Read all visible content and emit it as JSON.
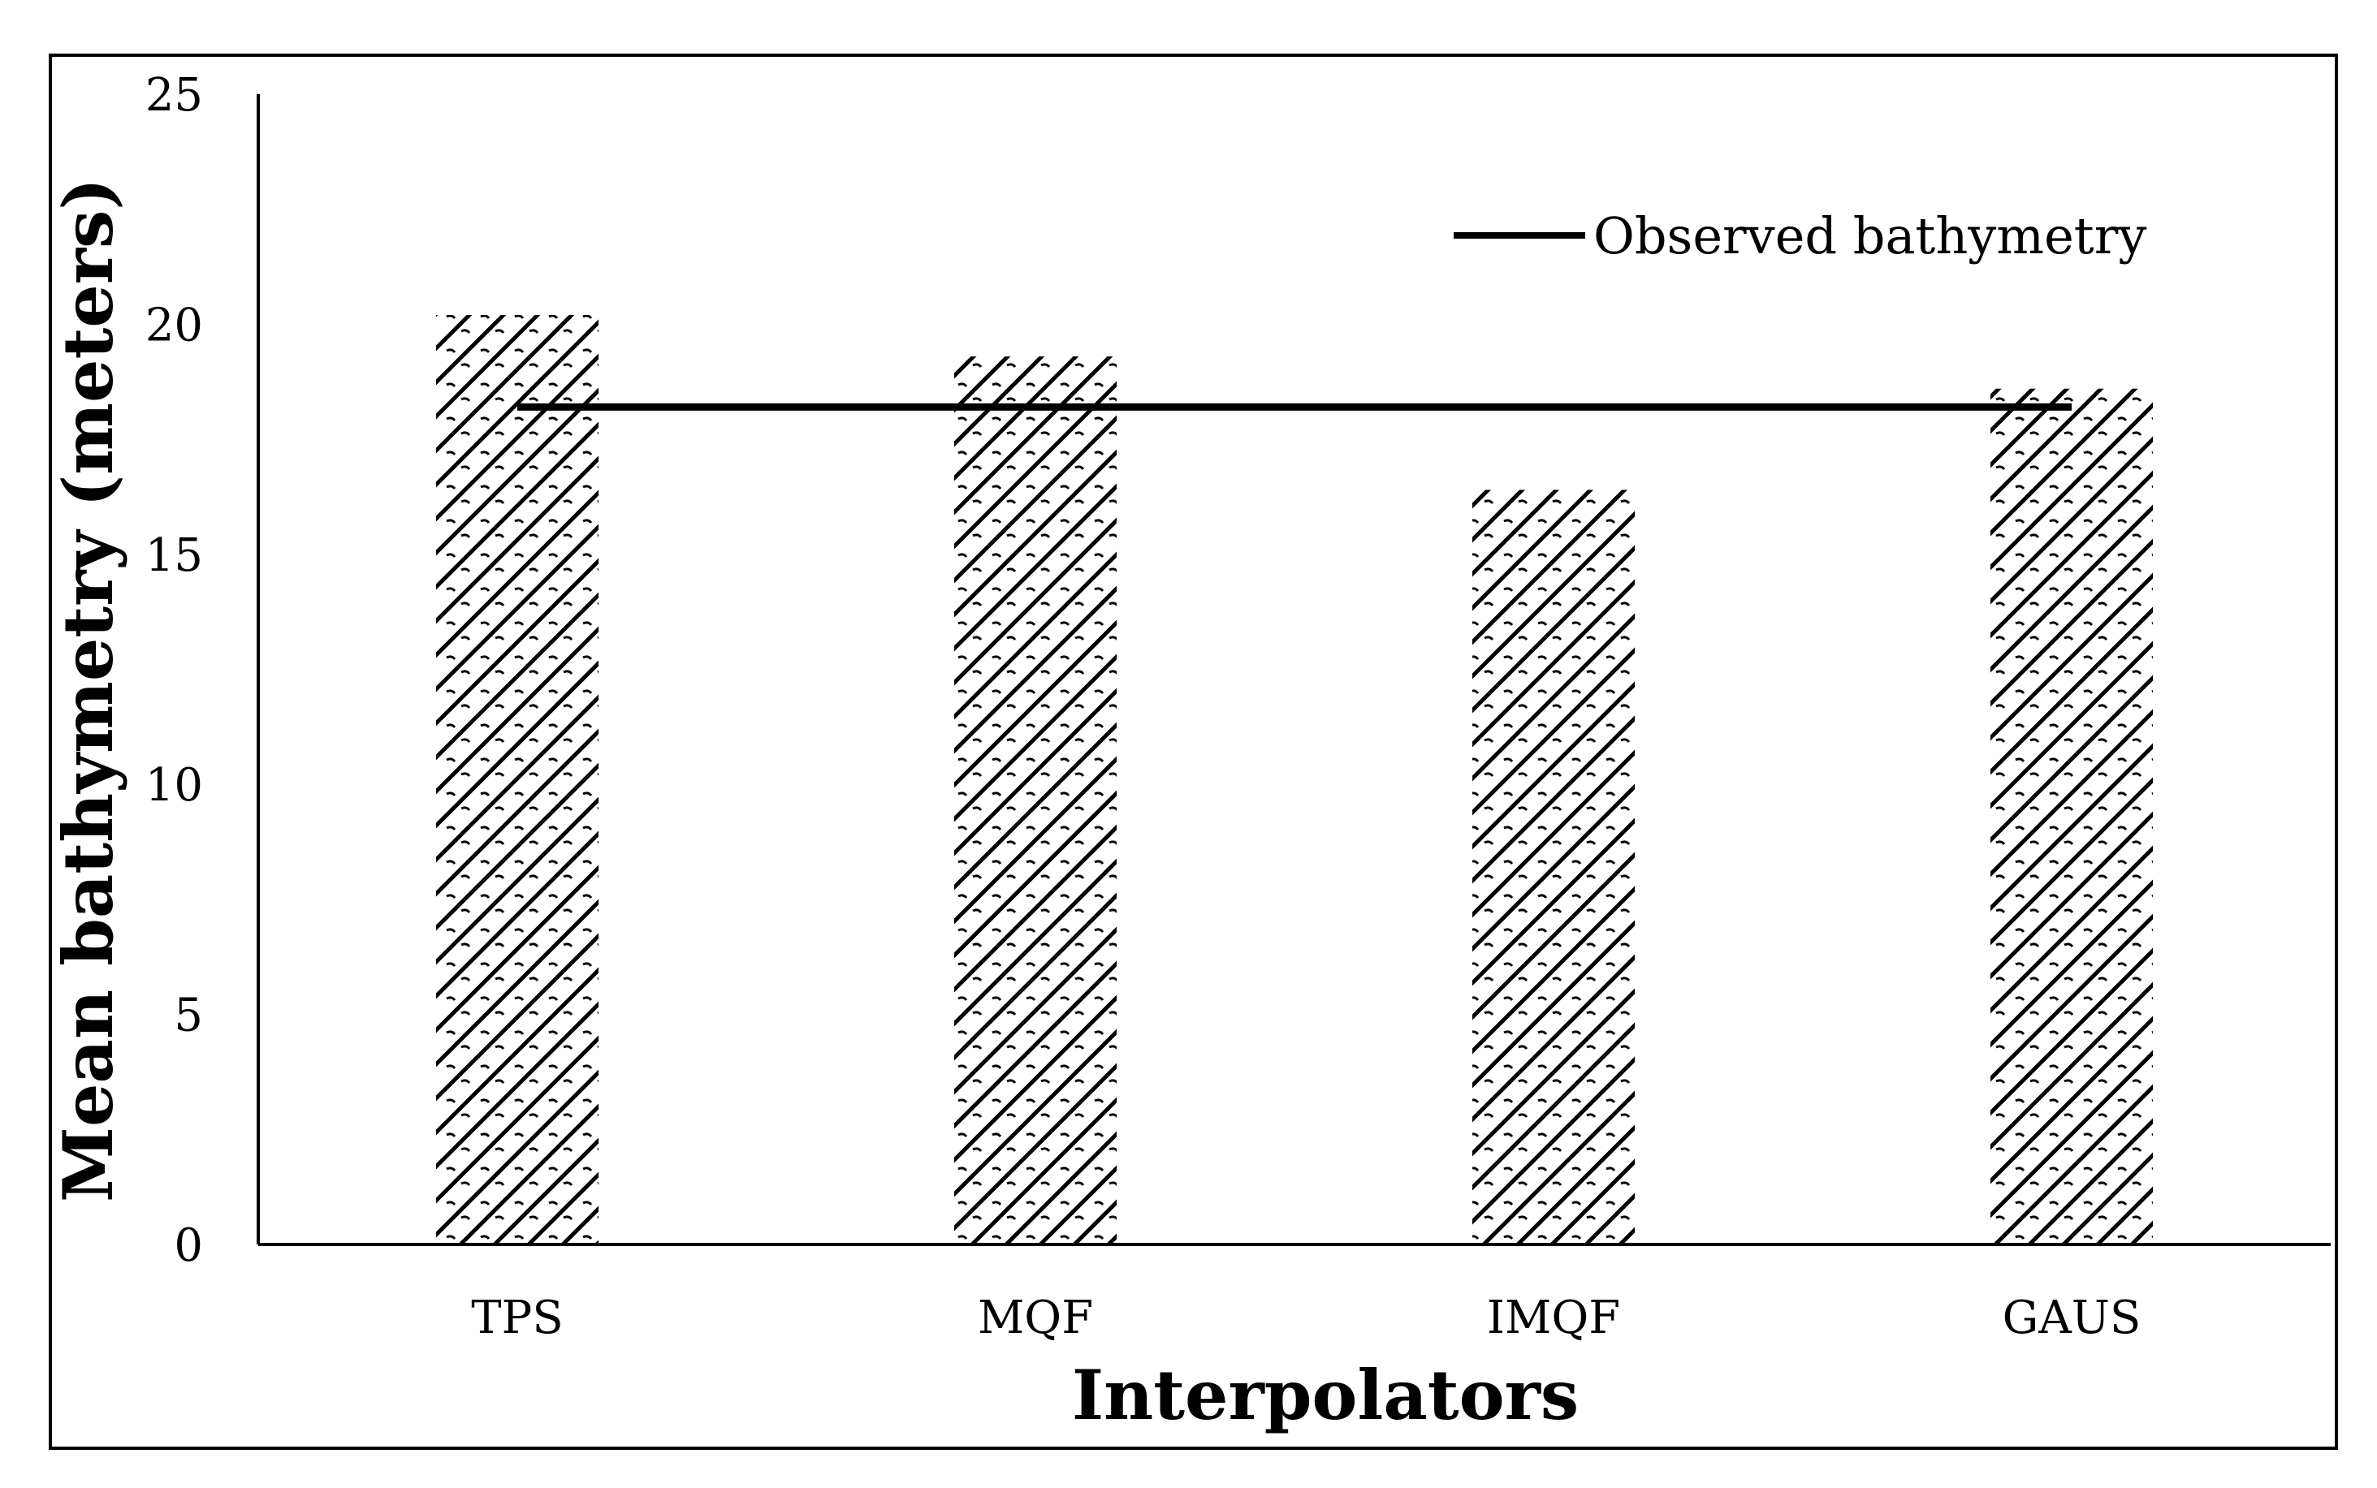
{
  "chart_data": {
    "type": "bar",
    "title": "",
    "xlabel": "Interpolators",
    "ylabel": "Mean bathymetry (meters)",
    "categories": [
      "TPS",
      "MQF",
      "IMQF",
      "GAUS"
    ],
    "series": [
      {
        "values": [
          20.2,
          19.3,
          16.4,
          18.6
        ]
      }
    ],
    "reference_line": {
      "name": "Observed bathymetry",
      "value": 18.2
    },
    "ylim": [
      0,
      25
    ],
    "yticks": [
      0,
      5,
      10,
      15,
      20,
      25
    ],
    "grid": false,
    "legend": "top-right",
    "bar_pattern": "diagonal-hatch",
    "colors": {
      "bar_stroke": "#000000",
      "line": "#000000",
      "background": "#ffffff"
    }
  }
}
